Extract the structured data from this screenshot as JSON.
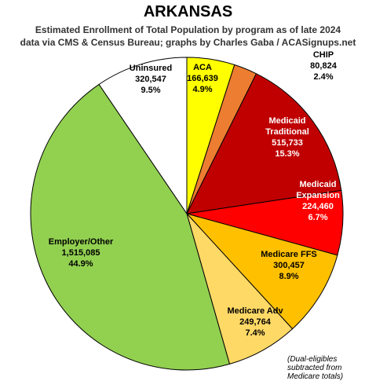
{
  "chart_data": {
    "type": "pie",
    "title": "ARKANSAS",
    "subtitle": "Estimated Enrollment of Total Population by program as of late 2024",
    "subtitle2": "data via CMS & Census Bureau; graphs by Charles Gaba / ACASignups.net",
    "annotation": "(Dual-eligibles subtracted from Medicare totals)",
    "categories": [
      "ACA",
      "CHIP",
      "Medicaid Traditional",
      "Medicaid Expansion",
      "Medicare FFS",
      "Medicare Adv",
      "Employer/Other",
      "Uninsured"
    ],
    "values": [
      166639,
      80824,
      515733,
      224460,
      300457,
      249764,
      1515085,
      320547
    ],
    "value_labels": [
      "166,639",
      "80,824",
      "515,733",
      "224,460",
      "300,457",
      "249,764",
      "1,515,085",
      "320,547"
    ],
    "percents": [
      4.9,
      2.4,
      15.3,
      6.7,
      8.9,
      7.4,
      44.9,
      9.5
    ],
    "percent_labels": [
      "4.9%",
      "2.4%",
      "15.3%",
      "6.7%",
      "8.9%",
      "7.4%",
      "44.9%",
      "9.5%"
    ],
    "colors": [
      "#ffff00",
      "#ed7d31",
      "#c00000",
      "#ff0000",
      "#ffc000",
      "#ffd966",
      "#92d050",
      "#ffffff"
    ]
  }
}
